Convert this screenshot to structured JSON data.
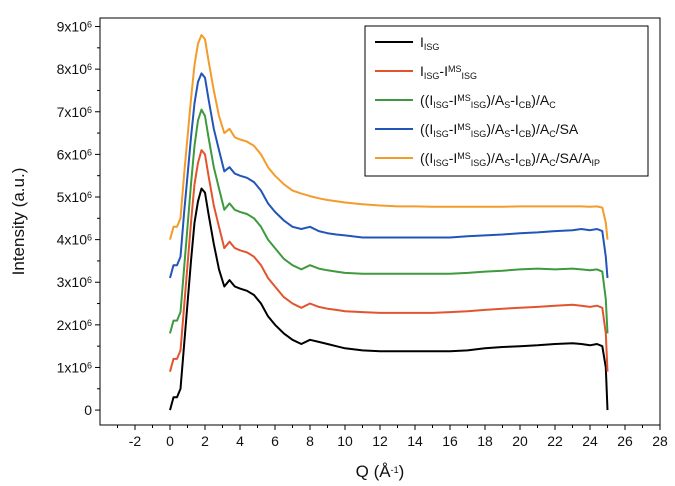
{
  "chart_data": {
    "type": "line",
    "xlabel": "Q (Å",
    "xlabel_sup": "-1",
    "xlabel_close": ")",
    "ylabel": "Intensity (a.u.)",
    "xlim": [
      -4,
      28
    ],
    "ylim": [
      -0.35,
      9.2
    ],
    "x_ticks": [
      "-2",
      "0",
      "2",
      "4",
      "6",
      "8",
      "10",
      "12",
      "14",
      "16",
      "18",
      "20",
      "22",
      "24",
      "26",
      "28"
    ],
    "y_ticks": [
      {
        "mant": "0",
        "exp": ""
      },
      {
        "mant": "1x10",
        "exp": "6"
      },
      {
        "mant": "2x10",
        "exp": "6"
      },
      {
        "mant": "3x10",
        "exp": "6"
      },
      {
        "mant": "4x10",
        "exp": "6"
      },
      {
        "mant": "5x10",
        "exp": "6"
      },
      {
        "mant": "6x10",
        "exp": "6"
      },
      {
        "mant": "7x10",
        "exp": "6"
      },
      {
        "mant": "8x10",
        "exp": "6"
      },
      {
        "mant": "9x10",
        "exp": "6"
      }
    ],
    "legend_position": "top-right",
    "y_unit": "x10^6",
    "series": [
      {
        "legend": [
          [
            "I",
            ""
          ],
          [
            "ISG",
            "sub"
          ]
        ],
        "color": "#000000",
        "x": [
          0.0,
          0.2,
          0.4,
          0.6,
          0.8,
          1.0,
          1.2,
          1.4,
          1.6,
          1.8,
          2.0,
          2.2,
          2.5,
          2.8,
          3.1,
          3.4,
          3.7,
          4.0,
          4.4,
          4.8,
          5.2,
          5.6,
          6.0,
          6.5,
          7.0,
          7.5,
          8.0,
          8.5,
          9.0,
          9.5,
          10,
          11,
          12,
          13,
          14,
          15,
          16,
          17,
          18,
          19,
          20,
          21,
          22,
          23,
          23.5,
          24,
          24.4,
          24.7,
          24.9,
          25.0
        ],
        "y": [
          0.0,
          0.3,
          0.3,
          0.5,
          1.5,
          2.5,
          3.5,
          4.4,
          4.9,
          5.2,
          5.1,
          4.6,
          3.9,
          3.3,
          2.9,
          3.05,
          2.9,
          2.85,
          2.8,
          2.7,
          2.5,
          2.2,
          2.0,
          1.8,
          1.65,
          1.55,
          1.65,
          1.6,
          1.55,
          1.5,
          1.45,
          1.4,
          1.38,
          1.38,
          1.38,
          1.38,
          1.38,
          1.4,
          1.45,
          1.48,
          1.5,
          1.52,
          1.55,
          1.57,
          1.55,
          1.52,
          1.55,
          1.5,
          1.0,
          0.0
        ]
      },
      {
        "legend": [
          [
            "I",
            ""
          ],
          [
            "ISG",
            "sub"
          ],
          [
            "-I",
            ""
          ],
          [
            "MS",
            "sup"
          ],
          [
            "ISG",
            "sub"
          ]
        ],
        "color": "#e2542e",
        "x": [
          0.0,
          0.2,
          0.4,
          0.6,
          0.8,
          1.0,
          1.2,
          1.4,
          1.6,
          1.8,
          2.0,
          2.2,
          2.5,
          2.8,
          3.1,
          3.4,
          3.7,
          4.0,
          4.4,
          4.8,
          5.2,
          5.6,
          6.0,
          6.5,
          7.0,
          7.5,
          8.0,
          8.5,
          9.0,
          9.5,
          10,
          11,
          12,
          13,
          14,
          15,
          16,
          17,
          18,
          19,
          20,
          21,
          22,
          23,
          23.5,
          24,
          24.4,
          24.7,
          24.9,
          25.0
        ],
        "y": [
          0.9,
          1.2,
          1.2,
          1.4,
          2.4,
          3.4,
          4.4,
          5.3,
          5.8,
          6.1,
          6.0,
          5.5,
          4.8,
          4.3,
          3.8,
          3.95,
          3.8,
          3.75,
          3.7,
          3.6,
          3.4,
          3.1,
          2.9,
          2.65,
          2.5,
          2.4,
          2.5,
          2.42,
          2.38,
          2.35,
          2.32,
          2.3,
          2.28,
          2.28,
          2.28,
          2.28,
          2.3,
          2.32,
          2.35,
          2.38,
          2.4,
          2.42,
          2.45,
          2.47,
          2.45,
          2.42,
          2.45,
          2.4,
          1.8,
          0.9
        ]
      },
      {
        "legend": [
          [
            "((I",
            ""
          ],
          [
            "ISG",
            "sub"
          ],
          [
            "-I",
            ""
          ],
          [
            "MS",
            "sup"
          ],
          [
            "ISG",
            "sub"
          ],
          [
            ")/A",
            ""
          ],
          [
            "S",
            "sub"
          ],
          [
            "-I",
            ""
          ],
          [
            "CB",
            "sub"
          ],
          [
            ")/A",
            ""
          ],
          [
            "C",
            "sub"
          ]
        ],
        "color": "#3e9a3e",
        "x": [
          0.0,
          0.2,
          0.4,
          0.6,
          0.8,
          1.0,
          1.2,
          1.4,
          1.6,
          1.8,
          2.0,
          2.2,
          2.5,
          2.8,
          3.1,
          3.4,
          3.7,
          4.0,
          4.4,
          4.8,
          5.2,
          5.6,
          6.0,
          6.5,
          7.0,
          7.5,
          8.0,
          8.5,
          9.0,
          9.5,
          10,
          11,
          12,
          13,
          14,
          15,
          16,
          17,
          18,
          19,
          20,
          21,
          22,
          23,
          23.5,
          24,
          24.4,
          24.7,
          24.9,
          25.0
        ],
        "y": [
          1.8,
          2.1,
          2.1,
          2.3,
          3.3,
          4.3,
          5.3,
          6.2,
          6.8,
          7.05,
          6.9,
          6.4,
          5.7,
          5.2,
          4.7,
          4.85,
          4.7,
          4.65,
          4.6,
          4.5,
          4.3,
          4.0,
          3.8,
          3.55,
          3.4,
          3.3,
          3.4,
          3.32,
          3.28,
          3.25,
          3.22,
          3.2,
          3.2,
          3.2,
          3.2,
          3.2,
          3.2,
          3.22,
          3.25,
          3.27,
          3.3,
          3.32,
          3.3,
          3.32,
          3.3,
          3.28,
          3.3,
          3.25,
          2.6,
          1.8
        ]
      },
      {
        "legend": [
          [
            "((I",
            ""
          ],
          [
            "ISG",
            "sub"
          ],
          [
            "-I",
            ""
          ],
          [
            "MS",
            "sup"
          ],
          [
            "ISG",
            "sub"
          ],
          [
            ")/A",
            ""
          ],
          [
            "S",
            "sub"
          ],
          [
            "-I",
            ""
          ],
          [
            "CB",
            "sub"
          ],
          [
            ")/A",
            ""
          ],
          [
            "C",
            "sub"
          ],
          [
            "/SA",
            ""
          ]
        ],
        "color": "#2155b8",
        "x": [
          0.0,
          0.2,
          0.4,
          0.6,
          0.8,
          1.0,
          1.2,
          1.4,
          1.6,
          1.8,
          2.0,
          2.2,
          2.5,
          2.8,
          3.1,
          3.4,
          3.7,
          4.0,
          4.4,
          4.8,
          5.2,
          5.6,
          6.0,
          6.5,
          7.0,
          7.5,
          8.0,
          8.5,
          9.0,
          9.5,
          10,
          11,
          12,
          13,
          14,
          15,
          16,
          17,
          18,
          19,
          20,
          21,
          22,
          23,
          23.5,
          24,
          24.4,
          24.7,
          24.9,
          25.0
        ],
        "y": [
          3.1,
          3.4,
          3.4,
          3.6,
          4.6,
          5.5,
          6.4,
          7.2,
          7.7,
          7.9,
          7.8,
          7.3,
          6.6,
          6.1,
          5.6,
          5.7,
          5.55,
          5.5,
          5.45,
          5.35,
          5.15,
          4.85,
          4.65,
          4.45,
          4.3,
          4.25,
          4.3,
          4.2,
          4.15,
          4.12,
          4.1,
          4.05,
          4.05,
          4.05,
          4.05,
          4.05,
          4.05,
          4.08,
          4.1,
          4.12,
          4.15,
          4.17,
          4.2,
          4.22,
          4.25,
          4.22,
          4.25,
          4.2,
          3.6,
          3.1
        ]
      },
      {
        "legend": [
          [
            "((I",
            ""
          ],
          [
            "ISG",
            "sub"
          ],
          [
            "-I",
            ""
          ],
          [
            "MS",
            "sup"
          ],
          [
            "ISG",
            "sub"
          ],
          [
            ")/A",
            ""
          ],
          [
            "S",
            "sub"
          ],
          [
            "-I",
            ""
          ],
          [
            "CB",
            "sub"
          ],
          [
            ")/A",
            ""
          ],
          [
            "C",
            "sub"
          ],
          [
            "/SA/A",
            ""
          ],
          [
            "IP",
            "sub"
          ]
        ],
        "color": "#f39b2b",
        "x": [
          0.0,
          0.2,
          0.4,
          0.6,
          0.8,
          1.0,
          1.2,
          1.4,
          1.6,
          1.8,
          2.0,
          2.2,
          2.5,
          2.8,
          3.1,
          3.4,
          3.7,
          4.0,
          4.4,
          4.8,
          5.2,
          5.6,
          6.0,
          6.5,
          7.0,
          7.5,
          8.0,
          8.5,
          9.0,
          9.5,
          10,
          11,
          12,
          13,
          14,
          15,
          16,
          17,
          18,
          19,
          20,
          21,
          22,
          23,
          23.5,
          24,
          24.4,
          24.7,
          24.9,
          25.0
        ],
        "y": [
          4.0,
          4.3,
          4.3,
          4.5,
          5.5,
          6.4,
          7.3,
          8.1,
          8.6,
          8.8,
          8.7,
          8.2,
          7.5,
          6.9,
          6.5,
          6.6,
          6.4,
          6.35,
          6.3,
          6.2,
          6.0,
          5.7,
          5.5,
          5.3,
          5.15,
          5.08,
          5.02,
          4.97,
          4.93,
          4.9,
          4.87,
          4.83,
          4.8,
          4.78,
          4.78,
          4.77,
          4.77,
          4.77,
          4.77,
          4.77,
          4.78,
          4.78,
          4.78,
          4.78,
          4.78,
          4.77,
          4.78,
          4.75,
          4.4,
          4.0
        ]
      }
    ]
  }
}
